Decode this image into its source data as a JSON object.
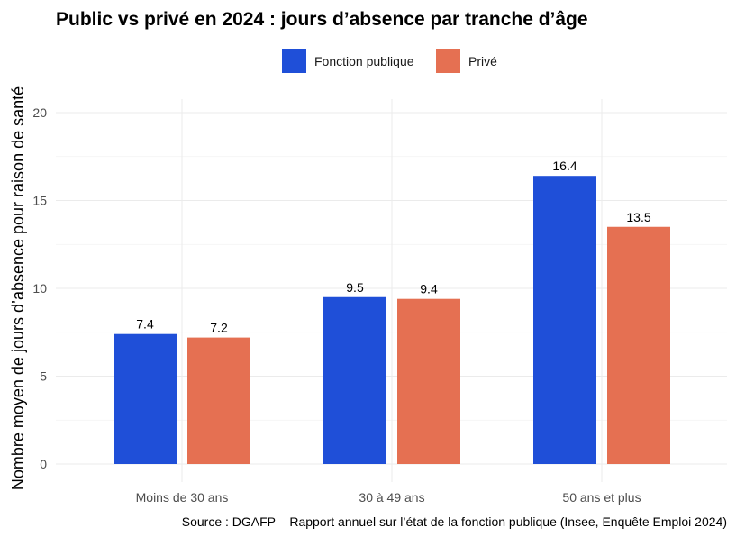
{
  "colors": {
    "public": "#1F4FD8",
    "prive": "#E57052"
  },
  "chart_data": {
    "type": "bar",
    "title": "Public vs privé en 2024 : jours d’absence par tranche d’âge",
    "xlabel": "",
    "ylabel": "Nombre moyen de jours d’absence pour raison de santé",
    "caption": "Source : DGAFP – Rapport annuel sur l’état de la fonction publique (Insee, Enquête Emploi 2024)",
    "categories": [
      "Moins de 30 ans",
      "30 à 49 ans",
      "50 ans et plus"
    ],
    "series": [
      {
        "name": "Fonction publique",
        "values": [
          7.4,
          9.5,
          16.4
        ],
        "labels": [
          "7.4",
          "9.5",
          "16.4"
        ]
      },
      {
        "name": "Privé",
        "values": [
          7.2,
          9.4,
          13.5
        ],
        "labels": [
          "7.2",
          "9.4",
          "13.5"
        ]
      }
    ],
    "ylim": [
      0,
      20
    ],
    "yticks": [
      0,
      5,
      10,
      15,
      20
    ],
    "ytick_labels": [
      "0",
      "5",
      "10",
      "15",
      "20"
    ],
    "grid": true,
    "legend_position": "top"
  }
}
